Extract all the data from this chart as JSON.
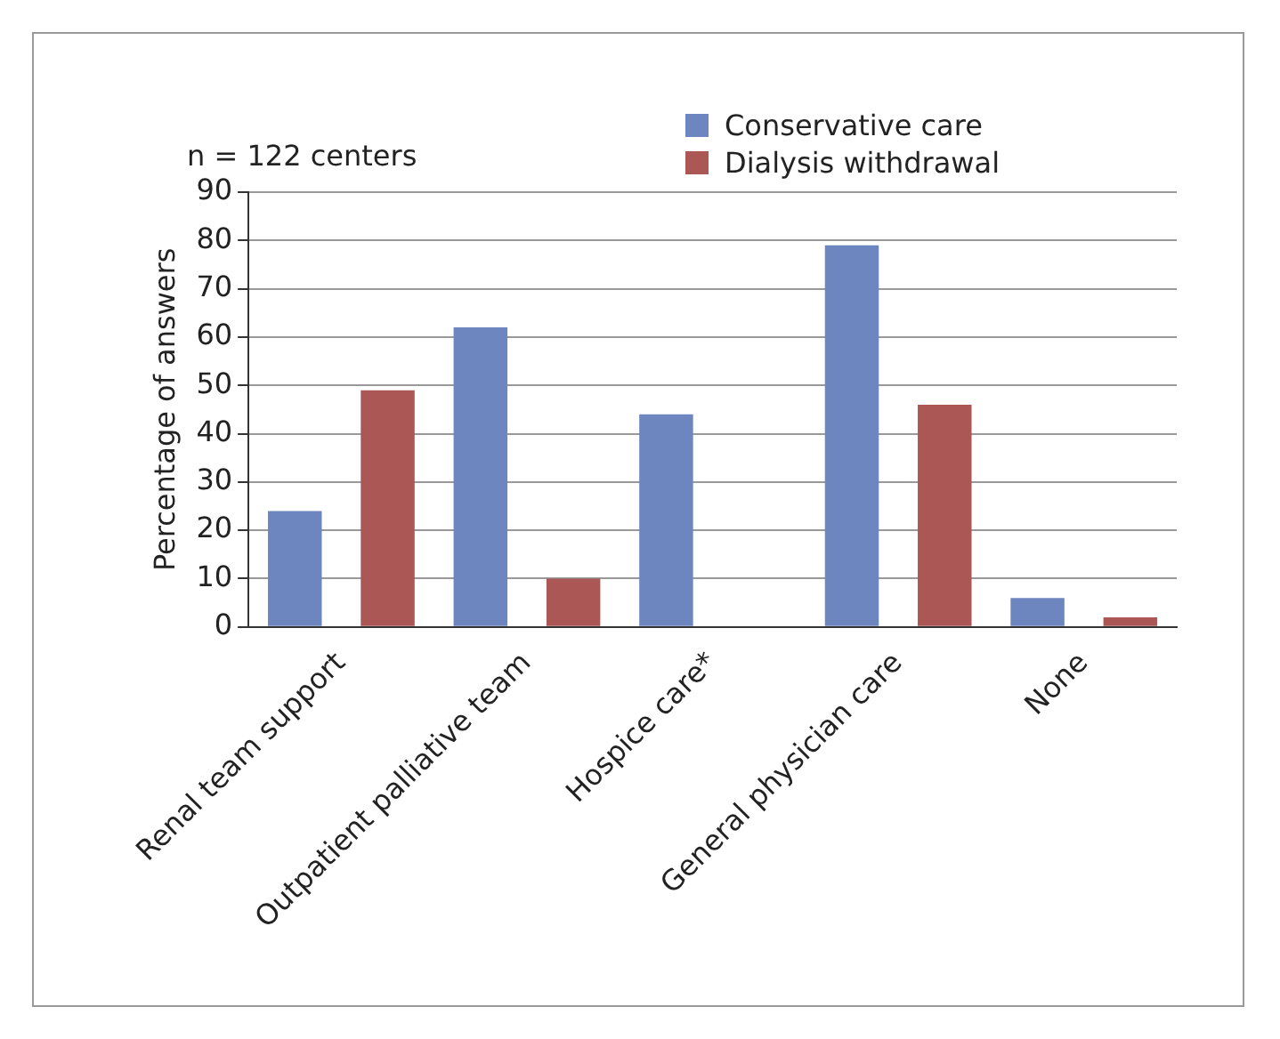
{
  "chart_data": {
    "type": "bar",
    "categories": [
      "Renal team support",
      "Outpatient palliative team",
      "Hospice care*",
      "General physician care",
      "None"
    ],
    "series": [
      {
        "name": "Conservative care",
        "color": "#6e86c0",
        "values": [
          24,
          62,
          44,
          79,
          6
        ]
      },
      {
        "name": "Dialysis withdrawal",
        "color": "#aa5755",
        "values": [
          49,
          10,
          null,
          46,
          2
        ]
      }
    ],
    "ylabel": "Percentage of answers",
    "ylim": [
      0,
      90
    ],
    "yticks": [
      0,
      10,
      20,
      30,
      40,
      50,
      60,
      70,
      80,
      90
    ],
    "grid": "y",
    "legend": "top right",
    "annotations": [
      "n = 122 centers"
    ]
  }
}
